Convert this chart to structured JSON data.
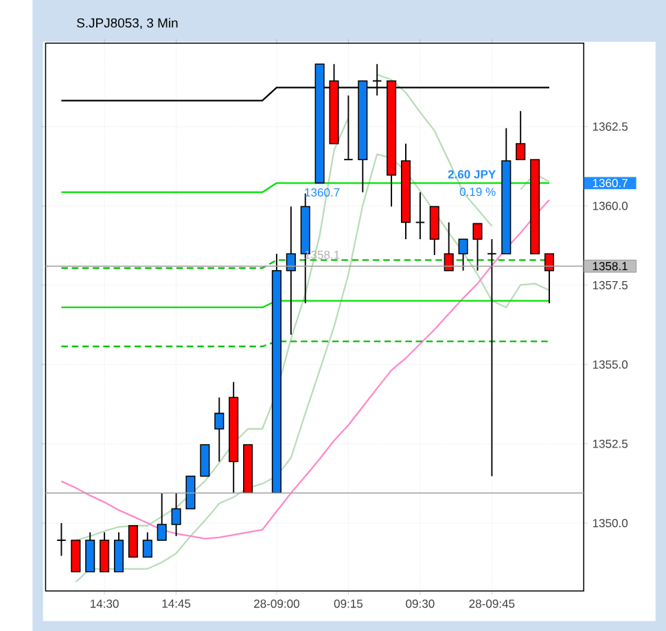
{
  "chart_data": {
    "type": "candlestick",
    "title": "S.JPJ8053, 3 Min",
    "categories": [
      null,
      null,
      null,
      "14:30",
      null,
      null,
      null,
      null,
      "14:45",
      null,
      null,
      null,
      null,
      null,
      null,
      "28-09:00",
      null,
      null,
      null,
      null,
      "09:15",
      null,
      null,
      null,
      null,
      "09:30",
      null,
      null,
      null,
      null,
      "28-09:45",
      null,
      null,
      null,
      null
    ],
    "ohlc": [
      [
        1349.46,
        1350.0,
        1348.97,
        1349.46
      ],
      [
        1349.46,
        1349.46,
        1348.47,
        1348.47
      ],
      [
        1348.47,
        1349.71,
        1348.47,
        1349.46
      ],
      [
        1349.46,
        1349.71,
        1348.47,
        1348.47
      ],
      [
        1348.47,
        1349.71,
        1348.47,
        1349.46
      ],
      [
        1349.92,
        1349.92,
        1348.93,
        1348.93
      ],
      [
        1348.93,
        1349.71,
        1348.93,
        1349.46
      ],
      [
        1349.46,
        1350.95,
        1349.46,
        1349.96
      ],
      [
        1349.96,
        1350.95,
        1349.59,
        1350.45
      ],
      [
        1350.45,
        1351.48,
        1350.45,
        1351.48
      ],
      [
        1351.48,
        1352.47,
        1351.48,
        1352.47
      ],
      [
        1352.97,
        1353.96,
        1351.94,
        1353.46
      ],
      [
        1353.96,
        1354.45,
        1350.95,
        1351.94
      ],
      [
        1352.47,
        1352.47,
        1350.95,
        1350.95
      ],
      null,
      [
        1350.95,
        1358.49,
        1350.95,
        1357.96
      ],
      [
        1357.96,
        1359.98,
        1355.94,
        1358.49
      ],
      [
        1358.49,
        1360.39,
        1356.93,
        1359.98
      ],
      [
        1360.72,
        1364.47,
        1360.72,
        1364.47
      ],
      [
        1363.94,
        1364.47,
        1361.96,
        1361.96
      ],
      [
        1361.46,
        1363.48,
        1361.46,
        1361.46
      ],
      [
        1361.46,
        1363.94,
        1360.43,
        1363.94
      ],
      [
        1363.94,
        1364.47,
        1363.48,
        1363.94
      ],
      [
        1363.94,
        1363.94,
        1359.98,
        1360.97
      ],
      [
        1361.42,
        1361.96,
        1358.95,
        1359.48
      ],
      [
        1359.48,
        1360.43,
        1358.95,
        1359.48
      ],
      [
        1359.98,
        1359.98,
        1358.45,
        1358.95
      ],
      [
        1358.49,
        1359.48,
        1357.96,
        1357.96
      ],
      [
        1358.49,
        1358.95,
        1357.96,
        1358.95
      ],
      [
        1359.44,
        1359.44,
        1357.96,
        1358.95
      ],
      [
        1358.49,
        1358.95,
        1351.48,
        1358.49
      ],
      [
        1358.49,
        1362.45,
        1358.49,
        1361.42
      ],
      [
        1361.96,
        1362.99,
        1361.46,
        1361.46
      ],
      [
        1361.46,
        1361.46,
        1358.49,
        1358.49
      ],
      [
        1358.49,
        1358.49,
        1356.93,
        1357.96
      ]
    ],
    "colors": [
      "#000000",
      "#ff0000",
      "#0a7cf0",
      "#ff0000",
      "#0a7cf0",
      "#ff0000",
      "#0a7cf0",
      "#0a7cf0",
      "#0a7cf0",
      "#0a7cf0",
      "#0a7cf0",
      "#0a7cf0",
      "#ff0000",
      "#ff0000",
      null,
      "#0a7cf0",
      "#0a7cf0",
      "#0a7cf0",
      "#0a7cf0",
      "#ff0000",
      "#000000",
      "#0a7cf0",
      "#000000",
      "#ff0000",
      "#ff0000",
      "#000000",
      "#ff0000",
      "#ff0000",
      "#0a7cf0",
      "#ff0000",
      "#000000",
      "#0a7cf0",
      "#ff0000",
      "#ff0000",
      "#ff0000"
    ],
    "series": [
      {
        "type": "line",
        "color": "#b8dcb8",
        "values": [
          null,
          1349.46,
          1349.59,
          1349.75,
          1349.88,
          1349.92,
          1349.92,
          1350.21,
          1350.49,
          1350.91,
          1351.32,
          1351.9,
          1352.52,
          1352.97,
          1352.97,
          1354.12,
          1355.81,
          1357.22,
          1359.07,
          1361.75,
          1362.78,
          null,
          1364.14,
          1363.98,
          1363.57,
          1362.95,
          1362.37,
          1361.42,
          1360.43,
          1359.9,
          1359.36,
          null,
          1360.52,
          1361.01,
          1360.76
        ]
      },
      {
        "type": "line",
        "color": "#b8dcb8",
        "values": [
          null,
          1348.14,
          1348.56,
          1348.56,
          1348.56,
          1348.56,
          1348.56,
          1348.76,
          1349.05,
          1349.59,
          1350.08,
          1350.62,
          1350.82,
          1351.11,
          1351.24,
          1351.48,
          1352.06,
          1353.46,
          1354.82,
          1356.19,
          1357.84,
          1360.02,
          1361.63,
          1361.51,
          1361.09,
          1360.47,
          1359.81,
          1359.15,
          1358.54,
          1357.84,
          1357.01,
          1356.8,
          1357.51,
          1357.55,
          1357.34
        ]
      },
      {
        "type": "line",
        "color": "#ff88c8",
        "values": [
          1351.32,
          1351.11,
          1350.87,
          1350.66,
          1350.41,
          1350.21,
          1350.0,
          1349.79,
          1349.67,
          1349.59,
          1349.51,
          1349.55,
          1349.63,
          1349.71,
          1349.79,
          1350.37,
          1350.95,
          1351.48,
          1352.02,
          1352.6,
          1353.09,
          1353.67,
          1354.25,
          1354.82,
          1355.2,
          1355.65,
          1356.1,
          1356.6,
          1357.09,
          1357.55,
          1358.12,
          1358.66,
          1359.15,
          1359.69,
          1360.19
        ]
      },
      {
        "type": "line",
        "color": "#000000",
        "values": [
          1363.32,
          1363.32,
          1363.32,
          1363.32,
          1363.32,
          1363.32,
          1363.32,
          1363.32,
          1363.32,
          1363.32,
          1363.32,
          1363.32,
          1363.32,
          1363.32,
          1363.32,
          1363.73,
          1363.73,
          1363.73,
          1363.73,
          1363.73,
          1363.73,
          1363.73,
          1363.73,
          1363.73,
          1363.73,
          1363.73,
          1363.73,
          1363.73,
          1363.73,
          1363.73,
          1363.73,
          1363.73,
          1363.73,
          1363.73,
          1363.73
        ]
      },
      {
        "type": "line",
        "color": "#00e000",
        "values": [
          1360.43,
          1360.43,
          1360.43,
          1360.43,
          1360.43,
          1360.43,
          1360.43,
          1360.43,
          1360.43,
          1360.43,
          1360.43,
          1360.43,
          1360.43,
          1360.43,
          1360.43,
          1360.72,
          1360.72,
          1360.72,
          1360.72,
          1360.72,
          1360.72,
          1360.72,
          1360.72,
          1360.72,
          1360.72,
          1360.72,
          1360.72,
          1360.72,
          1360.72,
          1360.72,
          1360.72,
          1360.72,
          1360.72,
          1360.72,
          1360.72
        ]
      },
      {
        "type": "line",
        "color": "#00e000",
        "values": [
          1356.8,
          1356.8,
          1356.8,
          1356.8,
          1356.8,
          1356.8,
          1356.8,
          1356.8,
          1356.8,
          1356.8,
          1356.8,
          1356.8,
          1356.8,
          1356.8,
          1356.8,
          1357.01,
          1357.01,
          1357.01,
          1357.01,
          1357.01,
          1357.01,
          1357.01,
          1357.01,
          1357.01,
          1357.01,
          1357.01,
          1357.01,
          1357.01,
          1357.01,
          1357.01,
          1357.01,
          1357.01,
          1357.01,
          1357.01,
          1357.01
        ]
      },
      {
        "type": "line",
        "color": "#00c000",
        "line_style": "dashed",
        "values": [
          1358.04,
          1358.04,
          1358.04,
          1358.04,
          1358.04,
          1358.04,
          1358.04,
          1358.04,
          1358.04,
          1358.04,
          1358.04,
          1358.04,
          1358.04,
          1358.04,
          1358.04,
          1358.29,
          1358.29,
          1358.29,
          1358.29,
          1358.29,
          1358.29,
          1358.29,
          1358.29,
          1358.29,
          1358.29,
          1358.29,
          1358.29,
          1358.29,
          1358.29,
          1358.29,
          1358.29,
          1358.29,
          1358.29,
          1358.29,
          1358.29
        ]
      },
      {
        "type": "line",
        "color": "#00c000",
        "line_style": "dashed",
        "values": [
          1355.57,
          1355.57,
          1355.57,
          1355.57,
          1355.57,
          1355.57,
          1355.57,
          1355.57,
          1355.57,
          1355.57,
          1355.57,
          1355.57,
          1355.57,
          1355.57,
          1355.57,
          1355.73,
          1355.73,
          1355.73,
          1355.73,
          1355.73,
          1355.73,
          1355.73,
          1355.73,
          1355.73,
          1355.73,
          1355.73,
          1355.73,
          1355.73,
          1355.73,
          1355.73,
          1355.73,
          1355.73,
          1355.73,
          1355.73,
          1355.73
        ]
      }
    ],
    "ylim": [
      1347.86,
      1365.13
    ],
    "yticks": [
      {
        "value": 1350,
        "label": "1350.0"
      },
      {
        "value": 1352.5,
        "label": "1352.5"
      },
      {
        "value": 1355,
        "label": "1355.0"
      },
      {
        "value": 1357.5,
        "label": "1357.5"
      },
      {
        "value": 1360,
        "label": "1360.0"
      },
      {
        "value": 1362.5,
        "label": "1362.5"
      }
    ],
    "grid": true,
    "ref_lines": [
      {
        "axis": "y",
        "value": 1350.95,
        "color": "#a0a0a0"
      },
      {
        "axis": "y",
        "value": 1358.1,
        "label": "1358.1",
        "color": "#a0a0a0"
      }
    ],
    "annotations": [
      {
        "text": "1360.7",
        "y": 1360.7
      },
      {
        "text": "1358.1",
        "y": 1358.1
      },
      "2.60 JPY",
      "0.19 %",
      "1360.7"
    ]
  }
}
